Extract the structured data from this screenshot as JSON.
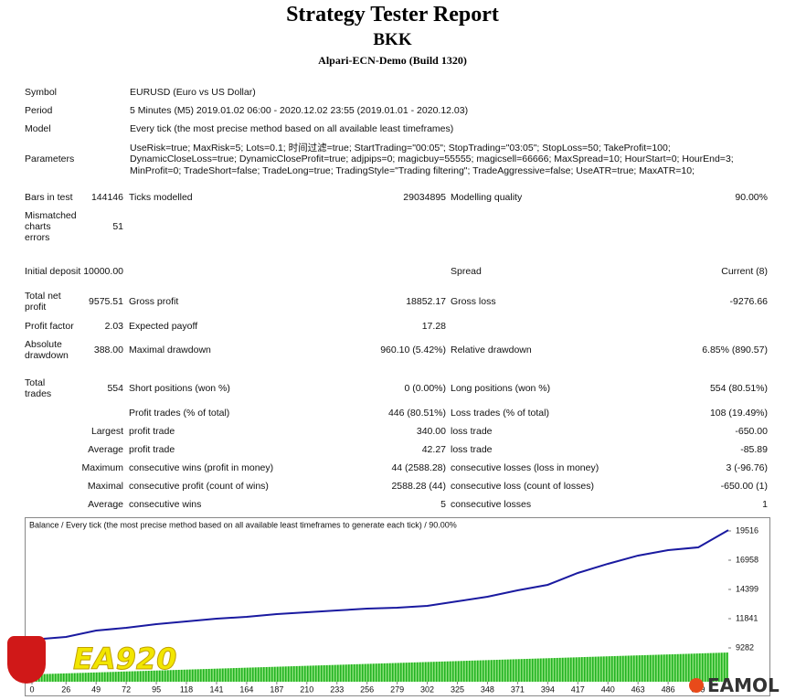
{
  "header": {
    "title": "Strategy Tester Report",
    "name": "BKK",
    "server": "Alpari-ECN-Demo (Build 1320)"
  },
  "info": [
    {
      "label": "Symbol",
      "lines": [
        "EURUSD (Euro vs US Dollar)"
      ]
    },
    {
      "label": "Period",
      "lines": [
        "5 Minutes (M5) 2019.01.02 06:00 - 2020.12.02 23:55 (2019.01.01 - 2020.12.03)"
      ]
    },
    {
      "label": "Model",
      "lines": [
        "Every tick (the most precise method based on all available least timeframes)"
      ]
    },
    {
      "label": "Parameters",
      "lines": [
        "UseRisk=true; MaxRisk=5; Lots=0.1; 时间过滤=true; StartTrading=\"00:05\"; StopTrading=\"03:05\"; StopLoss=50; TakeProfit=100;",
        "DynamicCloseLoss=true; DynamicCloseProfit=true; adjpips=0; magicbuy=55555; magicsell=66666; MaxSpread=10; HourStart=0; HourEnd=3;",
        "MinProfit=0; TradeShort=false; TradeLong=true; TradingStyle=\"Trading filtering\"; TradeAggressive=false; UseATR=true; MaxATR=10;"
      ]
    }
  ],
  "stats": [
    [
      "Bars in test",
      "144146",
      "Ticks modelled",
      "29034895",
      "Modelling quality",
      "90.00%"
    ],
    [
      "Mismatched charts errors",
      "51",
      null,
      null,
      null,
      null
    ],
    [
      "Initial deposit",
      "10000.00",
      null,
      null,
      "Spread",
      "Current (8)"
    ],
    [
      "Total net profit",
      "9575.51",
      "Gross profit",
      "18852.17",
      "Gross loss",
      "-9276.66"
    ],
    [
      "Profit factor",
      "2.03",
      "Expected payoff",
      "17.28",
      null,
      null
    ],
    [
      "Absolute drawdown",
      "388.00",
      "Maximal drawdown",
      "960.10 (5.42%)",
      "Relative drawdown",
      "6.85% (890.57)"
    ],
    [
      "Total trades",
      "554",
      "Short positions (won %)",
      "0 (0.00%)",
      "Long positions (won %)",
      "554 (80.51%)"
    ],
    [
      null,
      null,
      "Profit trades (% of total)",
      "446 (80.51%)",
      "Loss trades (% of total)",
      "108 (19.49%)"
    ],
    [
      null,
      "Largest",
      "profit trade",
      "340.00",
      "loss trade",
      "-650.00"
    ],
    [
      null,
      "Average",
      "profit trade",
      "42.27",
      "loss trade",
      "-85.89"
    ],
    [
      null,
      "Maximum",
      "consecutive wins (profit in money)",
      "44 (2588.28)",
      "consecutive losses (loss in money)",
      "3 (-96.76)"
    ],
    [
      null,
      "Maximal",
      "consecutive profit (count of wins)",
      "2588.28 (44)",
      "consecutive loss (count of losses)",
      "-650.00 (1)"
    ],
    [
      null,
      "Average",
      "consecutive wins",
      "5",
      "consecutive losses",
      "1"
    ]
  ],
  "chart_data": {
    "type": "line",
    "title": "Balance / Every tick (the most precise method based on all available least timeframes to generate each tick) / 90.00%",
    "x": [
      0,
      26,
      49,
      72,
      95,
      118,
      141,
      164,
      187,
      210,
      233,
      256,
      279,
      302,
      325,
      348,
      371,
      394,
      417,
      440,
      463,
      486,
      509,
      532
    ],
    "series": [
      {
        "name": "Balance",
        "color": "#1a1aa0",
        "values": [
          10000,
          10240,
          10800,
          11040,
          11360,
          11600,
          11840,
          12000,
          12240,
          12400,
          12560,
          12720,
          12800,
          12960,
          13360,
          13760,
          14320,
          14800,
          15840,
          16640,
          17360,
          17840,
          18080,
          19585
        ]
      }
    ],
    "xlim": [
      0,
      532
    ],
    "xticks": [
      0,
      26,
      49,
      72,
      95,
      118,
      141,
      164,
      187,
      210,
      233,
      256,
      279,
      302,
      325,
      348,
      371,
      394,
      417,
      440,
      463,
      486,
      509
    ],
    "ylim": [
      6324,
      20396
    ],
    "yticks": [
      9282,
      11841,
      14399,
      16958,
      19516
    ]
  },
  "watermarks": {
    "left": "EA920",
    "right": "EAMOL"
  }
}
